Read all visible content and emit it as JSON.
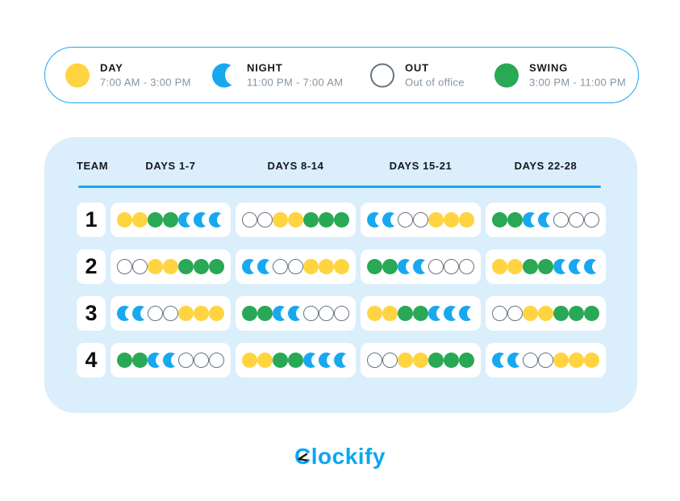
{
  "legend": {
    "items": [
      {
        "id": "day",
        "label": "DAY",
        "time": "7:00 AM - 3:00 PM",
        "icon": "day-circle-icon"
      },
      {
        "id": "night",
        "label": "NIGHT",
        "time": "11:00 PM - 7:00 AM",
        "icon": "night-moon-icon"
      },
      {
        "id": "out",
        "label": "OUT",
        "time": "Out of office",
        "icon": "out-circle-icon"
      },
      {
        "id": "swing",
        "label": "SWING",
        "time": "3:00 PM - 11:00 PM",
        "icon": "swing-circle-icon"
      }
    ]
  },
  "schedule_table": {
    "columns": [
      "TEAM",
      "DAYS 1-7",
      "DAYS 8-14",
      "DAYS 15-21",
      "DAYS 22-28"
    ],
    "rows": [
      {
        "team": "1",
        "weeks": [
          [
            "day",
            "day",
            "swing",
            "swing",
            "night",
            "night",
            "night"
          ],
          [
            "out",
            "out",
            "day",
            "day",
            "swing",
            "swing",
            "swing"
          ],
          [
            "night",
            "night",
            "out",
            "out",
            "day",
            "day",
            "day"
          ],
          [
            "swing",
            "swing",
            "night",
            "night",
            "out",
            "out",
            "out"
          ]
        ]
      },
      {
        "team": "2",
        "weeks": [
          [
            "out",
            "out",
            "day",
            "day",
            "swing",
            "swing",
            "swing"
          ],
          [
            "night",
            "night",
            "out",
            "out",
            "day",
            "day",
            "day"
          ],
          [
            "swing",
            "swing",
            "night",
            "night",
            "out",
            "out",
            "out"
          ],
          [
            "day",
            "day",
            "swing",
            "swing",
            "night",
            "night",
            "night"
          ]
        ]
      },
      {
        "team": "3",
        "weeks": [
          [
            "night",
            "night",
            "out",
            "out",
            "day",
            "day",
            "day"
          ],
          [
            "swing",
            "swing",
            "night",
            "night",
            "out",
            "out",
            "out"
          ],
          [
            "day",
            "day",
            "swing",
            "swing",
            "night",
            "night",
            "night"
          ],
          [
            "out",
            "out",
            "day",
            "day",
            "swing",
            "swing",
            "swing"
          ]
        ]
      },
      {
        "team": "4",
        "weeks": [
          [
            "swing",
            "swing",
            "night",
            "night",
            "out",
            "out",
            "out"
          ],
          [
            "day",
            "day",
            "swing",
            "swing",
            "night",
            "night",
            "night"
          ],
          [
            "out",
            "out",
            "day",
            "day",
            "swing",
            "swing",
            "swing"
          ],
          [
            "night",
            "night",
            "out",
            "out",
            "day",
            "day",
            "day"
          ]
        ]
      }
    ]
  },
  "footer": {
    "brand": "Clockify"
  },
  "colors": {
    "day": "#FFD440",
    "night": "#18A8F0",
    "swing": "#29A855",
    "out-border": "#66737F",
    "accent": "#1BA7F1",
    "card-bg": "#DAEEFB",
    "text-dark": "#15181D",
    "text-gray": "#8694A2",
    "logo": "#0AA7F2"
  }
}
